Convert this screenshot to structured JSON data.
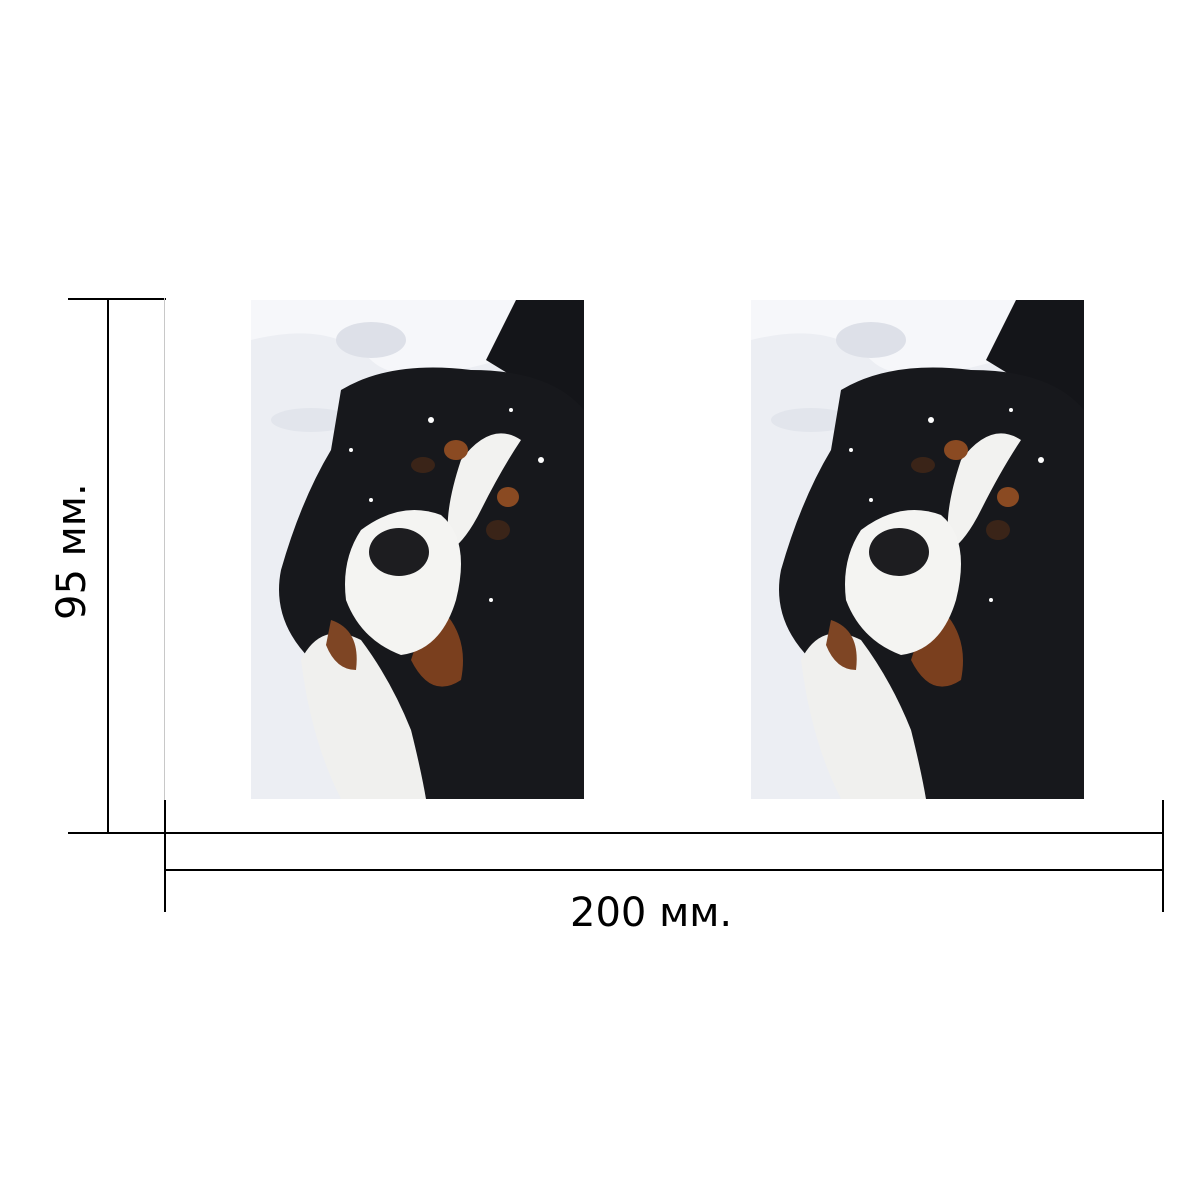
{
  "dimensions": {
    "width_label": "200 мм.",
    "height_label": "95 мм."
  },
  "photos": [
    {
      "subject": "bernese-mountain-dog-in-snow"
    },
    {
      "subject": "bernese-mountain-dog-in-snow"
    }
  ],
  "colors": {
    "line": "#000000",
    "snow": "#eef0f4",
    "fur_black": "#15161a",
    "fur_white": "#f4f4f2",
    "fur_tan": "#8a4a22"
  }
}
